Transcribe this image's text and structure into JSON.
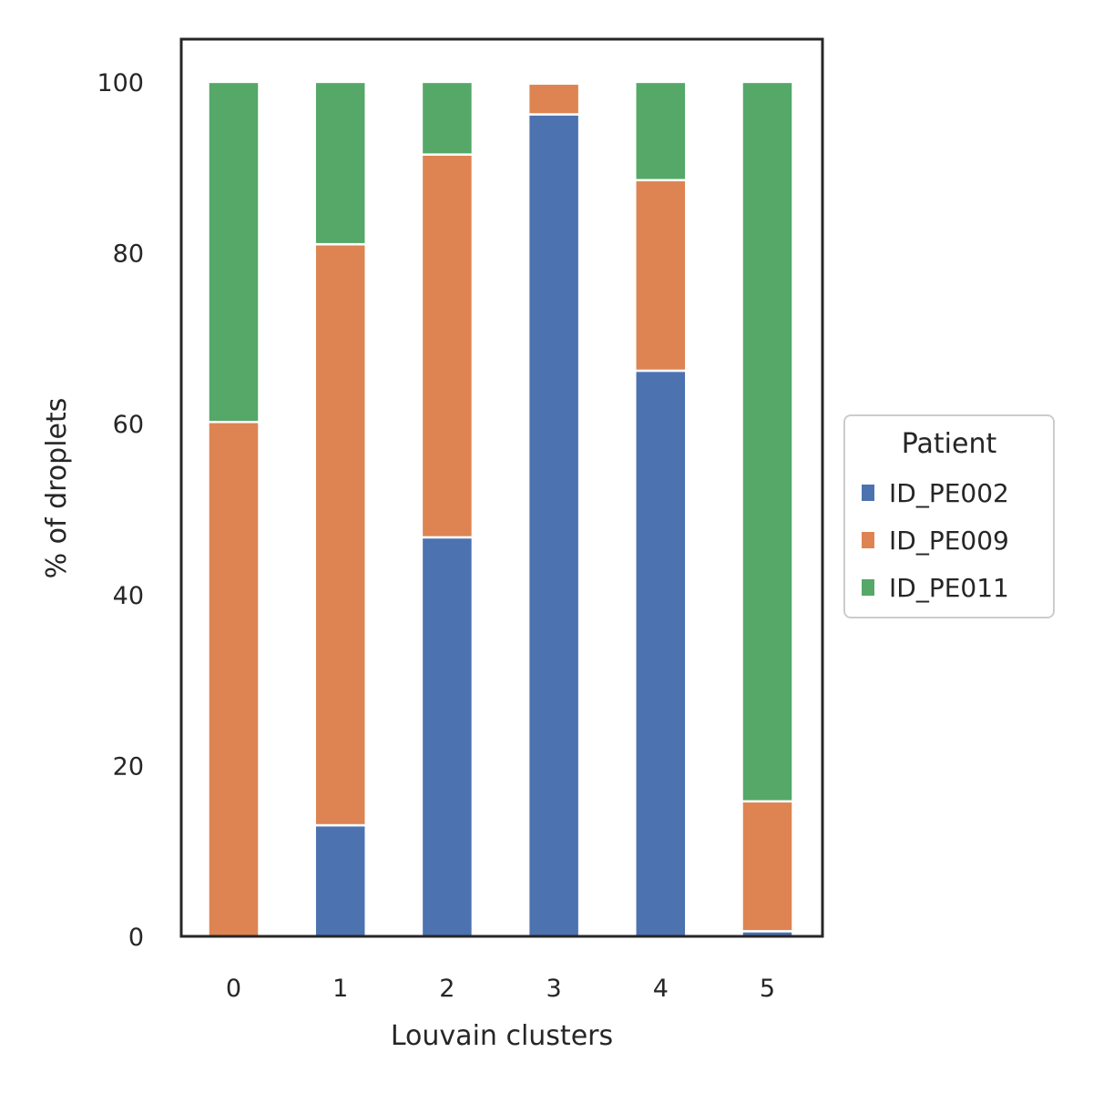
{
  "chart_data": {
    "type": "bar",
    "stacked": true,
    "xlabel": "Louvain clusters",
    "ylabel": "% of droplets",
    "categories": [
      "0",
      "1",
      "2",
      "3",
      "4",
      "5"
    ],
    "ylim": [
      0,
      105
    ],
    "yticks": [
      0,
      20,
      40,
      60,
      80,
      100
    ],
    "grid": false,
    "legend": {
      "title": "Patient",
      "placement": "center-right outside"
    },
    "series": [
      {
        "name": "ID_PE002",
        "color": "#4c72b0",
        "values": [
          0.0,
          13.0,
          46.7,
          96.2,
          66.2,
          0.6
        ]
      },
      {
        "name": "ID_PE009",
        "color": "#dd8452",
        "values": [
          60.2,
          68.0,
          44.8,
          3.6,
          22.3,
          15.2
        ]
      },
      {
        "name": "ID_PE011",
        "color": "#55a868",
        "values": [
          39.8,
          19.0,
          8.5,
          0.2,
          11.5,
          84.2
        ]
      }
    ]
  }
}
